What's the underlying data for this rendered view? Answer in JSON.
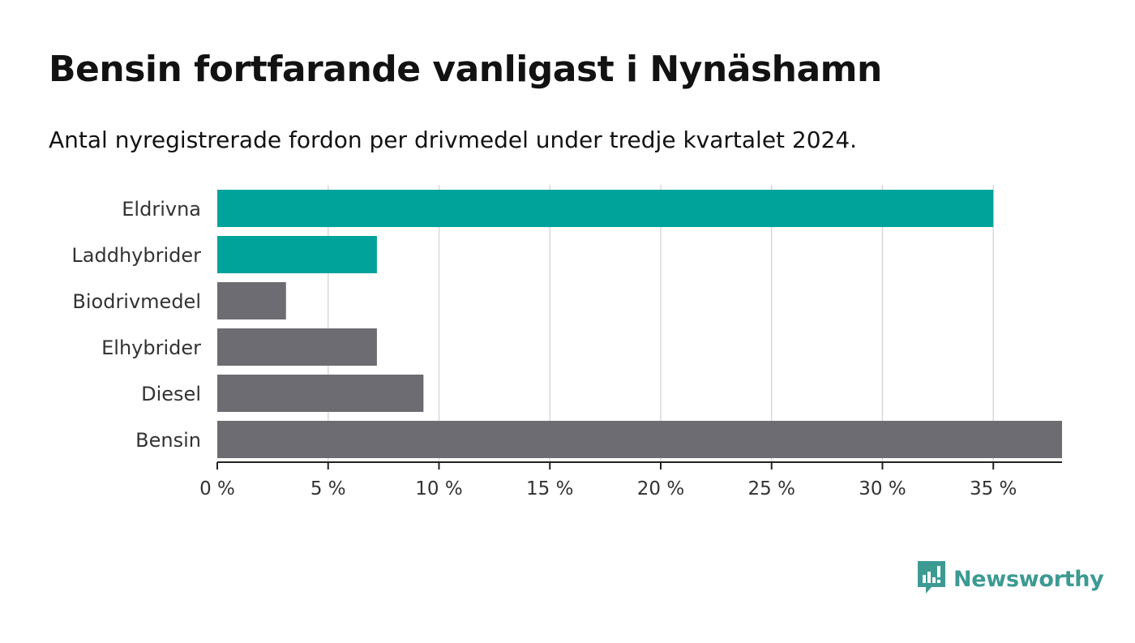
{
  "title": "Bensin fortfarande vanligast i Nynäshamn",
  "subtitle": "Antal nyregistrerade fordon per drivmedel under tredje kvartalet 2024.",
  "brand": {
    "name": "Newsworthy",
    "icon": "newsworthy-logo-icon",
    "color": "#3d9a93"
  },
  "colors": {
    "highlight": "#00a39a",
    "default": "#6d6c72",
    "grid": "#d9d9d9",
    "axis": "#222222"
  },
  "chart_data": {
    "type": "bar",
    "orientation": "horizontal",
    "categories": [
      "Eldrivna",
      "Laddhybrider",
      "Biodrivmedel",
      "Elhybrider",
      "Diesel",
      "Bensin"
    ],
    "values": [
      35.0,
      7.2,
      3.1,
      7.2,
      9.3,
      38.1
    ],
    "highlighted": [
      true,
      true,
      false,
      false,
      false,
      false
    ],
    "xlim": [
      0,
      38.1
    ],
    "xticks": [
      0,
      5,
      10,
      15,
      20,
      25,
      30,
      35
    ],
    "xtick_labels": [
      "0 %",
      "5 %",
      "10 %",
      "15 %",
      "20 %",
      "25 %",
      "30 %",
      "35 %"
    ],
    "xlabel": "",
    "ylabel": "",
    "grid": "vertical"
  }
}
